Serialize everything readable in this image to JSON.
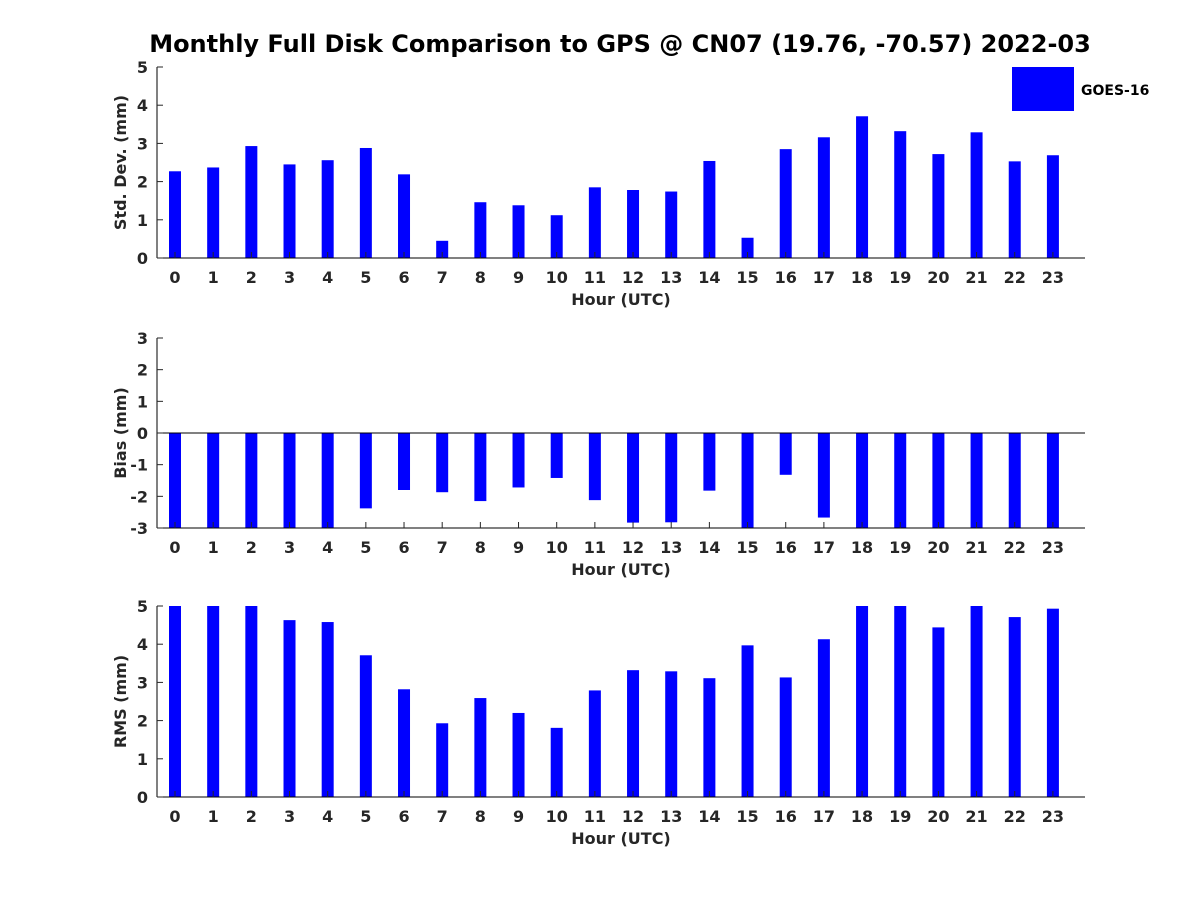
{
  "title": "Monthly Full Disk Comparison to GPS @ CN07 (19.76, -70.57) 2022-03",
  "colors": {
    "bar": "#0000ff",
    "axis": "#262626",
    "frame": "#000000"
  },
  "legend": {
    "label": "GOES-16",
    "placement": "top-right"
  },
  "chart_data": [
    {
      "type": "bar",
      "title": "",
      "xlabel": "Hour (UTC)",
      "ylabel": "Std. Dev. (mm)",
      "ylim": [
        0,
        5
      ],
      "yticks": [
        0,
        1,
        2,
        3,
        4,
        5
      ],
      "grid": false,
      "categories": [
        "0",
        "1",
        "2",
        "3",
        "4",
        "5",
        "6",
        "7",
        "8",
        "9",
        "10",
        "11",
        "12",
        "13",
        "14",
        "15",
        "16",
        "17",
        "18",
        "19",
        "20",
        "21",
        "22",
        "23"
      ],
      "series": [
        {
          "name": "GOES-16",
          "values": [
            2.27,
            2.37,
            2.93,
            2.45,
            2.56,
            2.88,
            2.19,
            0.45,
            1.46,
            1.38,
            1.12,
            1.85,
            1.78,
            1.74,
            2.54,
            0.53,
            2.85,
            3.16,
            3.71,
            3.32,
            2.72,
            3.29,
            2.53,
            2.69
          ]
        }
      ]
    },
    {
      "type": "bar",
      "title": "",
      "xlabel": "Hour (UTC)",
      "ylabel": "Bias (mm)",
      "ylim": [
        -3,
        3
      ],
      "yticks": [
        -3,
        -2,
        -1,
        0,
        1,
        2,
        3
      ],
      "grid": false,
      "categories": [
        "0",
        "1",
        "2",
        "3",
        "4",
        "5",
        "6",
        "7",
        "8",
        "9",
        "10",
        "11",
        "12",
        "13",
        "14",
        "15",
        "16",
        "17",
        "18",
        "19",
        "20",
        "21",
        "22",
        "23"
      ],
      "series": [
        {
          "name": "GOES-16",
          "values": [
            -3.0,
            -3.0,
            -3.0,
            -3.0,
            -3.0,
            -2.38,
            -1.8,
            -1.87,
            -2.15,
            -1.72,
            -1.42,
            -2.12,
            -2.83,
            -2.82,
            -1.82,
            -3.0,
            -1.32,
            -2.67,
            -3.0,
            -3.0,
            -3.0,
            -3.0,
            -3.0,
            -3.0
          ]
        }
      ]
    },
    {
      "type": "bar",
      "title": "",
      "xlabel": "Hour (UTC)",
      "ylabel": "RMS (mm)",
      "ylim": [
        0,
        5
      ],
      "yticks": [
        0,
        1,
        2,
        3,
        4,
        5
      ],
      "grid": false,
      "categories": [
        "0",
        "1",
        "2",
        "3",
        "4",
        "5",
        "6",
        "7",
        "8",
        "9",
        "10",
        "11",
        "12",
        "13",
        "14",
        "15",
        "16",
        "17",
        "18",
        "19",
        "20",
        "21",
        "22",
        "23"
      ],
      "series": [
        {
          "name": "GOES-16",
          "values": [
            5.0,
            5.0,
            5.0,
            4.63,
            4.58,
            3.71,
            2.82,
            1.93,
            2.59,
            2.2,
            1.81,
            2.79,
            3.32,
            3.29,
            3.11,
            3.97,
            3.13,
            4.13,
            5.0,
            5.0,
            4.44,
            5.0,
            4.71,
            4.93
          ]
        }
      ]
    }
  ]
}
